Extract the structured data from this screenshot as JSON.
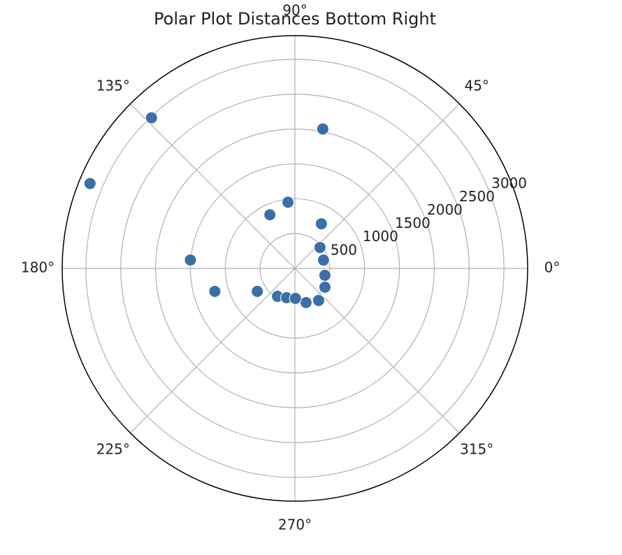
{
  "chart_data": {
    "type": "polar-scatter",
    "title": "Polar Plot Distances Bottom Right",
    "x": [
      78.7,
      133.6,
      157.5,
      96,
      115,
      59.3,
      39.8,
      16.3,
      175.4,
      347,
      328,
      196,
      211.4,
      306.5,
      288,
      238,
      254,
      271
    ],
    "values": [
      2040,
      2985,
      3183,
      955,
      850,
      744,
      469,
      427,
      1505,
      441,
      508,
      1196,
      633,
      572,
      515,
      472,
      437,
      430
    ],
    "color": "#3b6fa8",
    "rlim": [
      0,
      3340
    ],
    "rticks": [
      500,
      1000,
      1500,
      2000,
      2500,
      3000
    ],
    "thetaticks": [
      {
        "value": 0,
        "label": "0°"
      },
      {
        "value": 45,
        "label": "45°"
      },
      {
        "value": 90,
        "label": "90°"
      },
      {
        "value": 135,
        "label": "135°"
      },
      {
        "value": 180,
        "label": "180°"
      },
      {
        "value": 225,
        "label": "225°"
      },
      {
        "value": 270,
        "label": "270°"
      },
      {
        "value": 315,
        "label": "315°"
      }
    ],
    "grid": true
  }
}
